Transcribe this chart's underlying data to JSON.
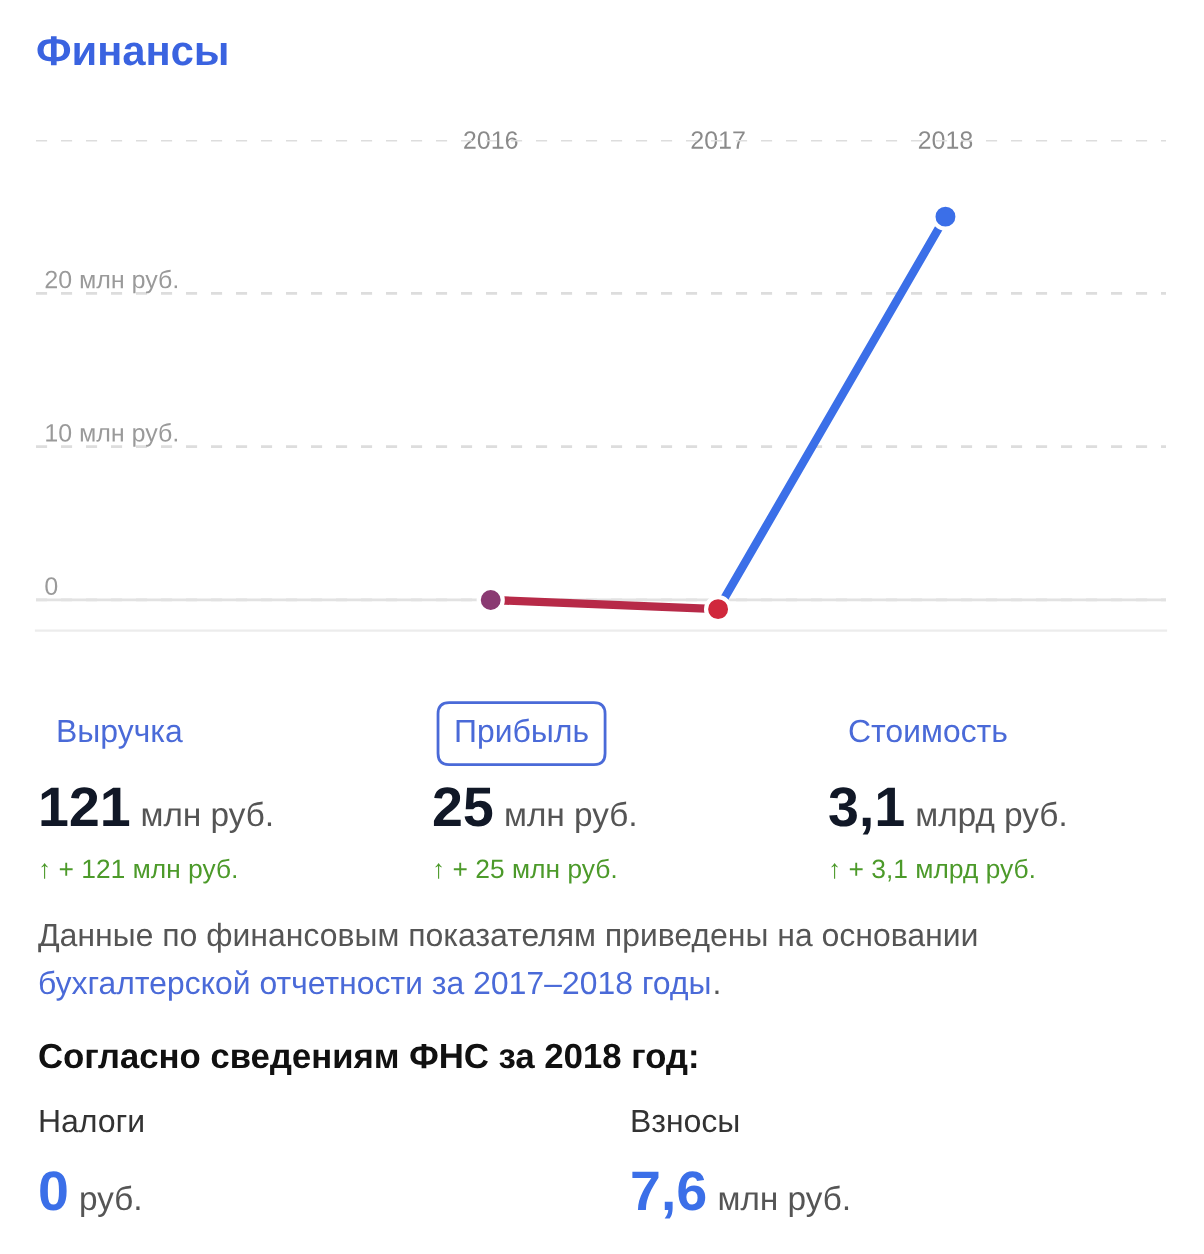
{
  "chart_data": [
    {
      "type": "line",
      "title": "Финансы",
      "categories": [
        "2016",
        "2017",
        "2018"
      ],
      "series": [
        {
          "color": "#b72a48",
          "values": [
            0,
            -0.6,
            null
          ],
          "colors": [
            "#8a3a72",
            "#d0283c",
            null
          ]
        },
        {
          "color": "#3b6fe8",
          "values": [
            null,
            -0.6,
            25
          ],
          "colors": [
            null,
            null,
            "#3b6fe8"
          ]
        }
      ],
      "ylim": [
        -2,
        30
      ],
      "yticks": [
        0,
        {
          "value": 10,
          "label": "10 млн руб."
        },
        {
          "value": 20,
          "label": "20 млн руб."
        },
        {
          "value": 30,
          "label": null
        }
      ],
      "ref_lines": [
        {
          "axis": "y",
          "value": 0,
          "color": "#e2e2e2",
          "line_style": "solid"
        }
      ],
      "grid": "y",
      "marker": "circle",
      "line_style": "solid"
    },
    {
      "type": "other",
      "annotations": [
        "Выручка",
        "Прибыль",
        "Стоимость",
        "121",
        "млн руб.",
        "25",
        "млн руб.",
        "3,1",
        "млрд руб.",
        "↑ + 121 млн руб.",
        "↑ + 25 млн руб.",
        "↑ + 3,1 млрд руб.",
        "Данные по финансовым показателям приведены на основании",
        "бухгалтерской отчетности за 2017–2018 годы",
        ".",
        "Согласно сведениям ФНС за 2018 год:",
        "Налоги",
        "Взносы",
        "0",
        "руб.",
        "7,6",
        "млн руб."
      ]
    }
  ]
}
